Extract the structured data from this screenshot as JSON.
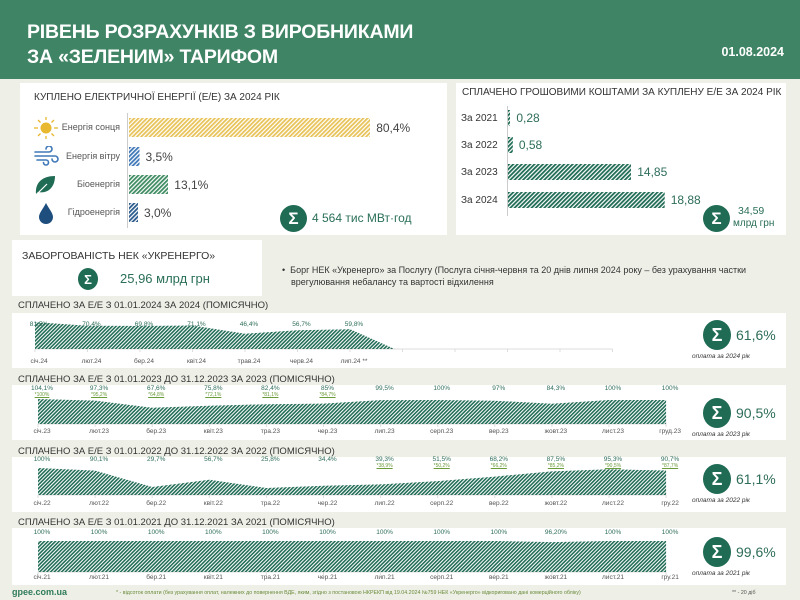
{
  "header": {
    "title_line1": "РІВЕНЬ РОЗРАХУНКІВ З ВИРОБНИКАМИ",
    "title_line2": "ЗА «ЗЕЛЕНИМ» ТАРИФОМ",
    "date": "01.08.2024"
  },
  "energy": {
    "title": "КУПЛЕНО ЕЛЕКТРИЧНОЇ ЕНЕРГІЇ (Е/Е) ЗА 2024 РІК",
    "items": [
      {
        "icon": "sun-icon",
        "label": "Енергія сонця",
        "value": 80.4,
        "value_label": "80,4%",
        "color": "#e8c35a"
      },
      {
        "icon": "wind-icon",
        "label": "Енергія вітру",
        "value": 3.5,
        "value_label": "3,5%",
        "color": "#3f78b8"
      },
      {
        "icon": "leaf-icon",
        "label": "Біоенергія",
        "value": 13.1,
        "value_label": "13,1%",
        "color": "#3f8c63"
      },
      {
        "icon": "water-drop-icon",
        "label": "Гідроенергія",
        "value": 3.0,
        "value_label": "3,0%",
        "color": "#2b5a8c"
      }
    ],
    "total": "4 564 тис МВт·год"
  },
  "paid": {
    "title": "СПЛАЧЕНО ГРОШОВИМИ КОШТАМИ ЗА КУПЛЕНУ Е/Е ЗА 2024 РІК",
    "items": [
      {
        "label": "За 2021",
        "value": 0.28,
        "value_label": "0,28"
      },
      {
        "label": "За 2022",
        "value": 0.58,
        "value_label": "0,58"
      },
      {
        "label": "За 2023",
        "value": 14.85,
        "value_label": "14,85"
      },
      {
        "label": "За 2024",
        "value": 18.88,
        "value_label": "18,88"
      }
    ],
    "total_value": "34,59",
    "total_unit": "млрд грн"
  },
  "debt": {
    "title": "ЗАБОРГОВАНІСТЬ НЕК «УКРЕНЕРГО»",
    "value": "25,96 млрд грн",
    "note_line1": "Борг НЕК «Укренерго» за Послугу (Послуга січня-червня та 20 днів липня 2024 року – без урахування частки",
    "note_line2": "врегулювання небалансу та вартості відхилення"
  },
  "chart_data": [
    {
      "type": "area",
      "title": "СПЛАЧЕНО ЗА Е/Е З 01.01.2024 ЗА 2024  (ПОМІСЯЧНО)",
      "categories": [
        "січ.24",
        "лют.24",
        "бер.24",
        "квіт.24",
        "трав.24",
        "черв.24",
        "лип.24 **"
      ],
      "values": [
        81.5,
        70.4,
        69.8,
        71.1,
        46.4,
        56.7,
        59.8
      ],
      "value_labels": [
        "81,5%",
        "70,4%",
        "69,8%",
        "71,1%",
        "46,4%",
        "56,7%",
        "59,8%"
      ],
      "sub_labels": [],
      "total": "61,6%",
      "caption": "оплата за 2024 рік",
      "color": "#1f6b54"
    },
    {
      "type": "area",
      "title": "СПЛАЧЕНО ЗА Е/Е З 01.01.2023 ДО 31.12.2023 ЗА 2023  (ПОМІСЯЧНО)",
      "categories": [
        "січ.23",
        "лют.23",
        "бер.23",
        "квіт.23",
        "тра.23",
        "чер.23",
        "лип.23",
        "серп.23",
        "вер.23",
        "жовт.23",
        "лист.23",
        "груд.23"
      ],
      "values": [
        104.1,
        97.3,
        67.6,
        75.8,
        82.4,
        85,
        99.5,
        100,
        97,
        84.3,
        100,
        100
      ],
      "value_labels": [
        "104,1%",
        "97,3%",
        "67,6%",
        "75,8%",
        "82,4%",
        "85%",
        "99,5%",
        "100%",
        "97%",
        "84,3%",
        "100%",
        "100%"
      ],
      "sub_labels": [
        "*100%",
        "*95,2%",
        "*64,8%",
        "*72,1%",
        "*81,1%",
        "*84,7%",
        "",
        "",
        "",
        "",
        "",
        ""
      ],
      "total": "90,5%",
      "caption": "оплата за 2023 рік",
      "color": "#1f6b54"
    },
    {
      "type": "area",
      "title": "СПЛАЧЕНО ЗА Е/Е З 01.01.2022 ДО 31.12.2022 ЗА 2022 (ПОМІСЯЧНО)",
      "categories": [
        "січ.22",
        "лют.22",
        "бер.22",
        "квіт.22",
        "тра.22",
        "чер.22",
        "лип.22",
        "серп.22",
        "вер.22",
        "жовт.22",
        "лист.22",
        "гру.22"
      ],
      "values": [
        100,
        90.1,
        29.7,
        56.7,
        25.8,
        34.4,
        39.3,
        51.5,
        68.2,
        87.5,
        95.3,
        90.7
      ],
      "value_labels": [
        "100%",
        "90,1%",
        "29,7%",
        "56,7%",
        "25,8%",
        "34,4%",
        "39,3%",
        "51,5%",
        "68,2%",
        "87,5%",
        "95,3%",
        "90,7%"
      ],
      "sub_labels": [
        "",
        "",
        "",
        "",
        "",
        "",
        "*38,9%",
        "*50,2%",
        "*66,2%",
        "*85,2%",
        "*90,5%",
        "*87,7%"
      ],
      "total": "61,1%",
      "caption": "оплата за 2022 рік",
      "color": "#1f6b54"
    },
    {
      "type": "area",
      "title": "СПЛАЧЕНО ЗА Е/Е З 01.01.2021 ДО 31.12.2021 ЗА 2021 (ПОМІСЯЧНО)",
      "categories": [
        "січ.21",
        "лют.21",
        "бер.21",
        "квіт.21",
        "тра.21",
        "чер.21",
        "лип.21",
        "серп.21",
        "вер.21",
        "жовт.21",
        "лист.21",
        "гру.21"
      ],
      "values": [
        100,
        100,
        100,
        100,
        100,
        100,
        100,
        100,
        100,
        96.2,
        100,
        100
      ],
      "value_labels": [
        "100%",
        "100%",
        "100%",
        "100%",
        "100%",
        "100%",
        "100%",
        "100%",
        "100%",
        "96,20%",
        "100%",
        "100%"
      ],
      "sub_labels": [],
      "total": "99,6%",
      "caption": "оплата за 2021 рік",
      "color": "#1f6b54"
    }
  ],
  "footer": {
    "site": "gpee.com.ua",
    "note": "* - відсоток оплати (без урахування оплат, належних до повернення ВДЕ, яким, згідно з постановою НКРЕКП від 19.04.2024  №759 НЕК «Укренерго» відкориговано дані комерційного обліку)",
    "note2": "** - 20 діб"
  }
}
